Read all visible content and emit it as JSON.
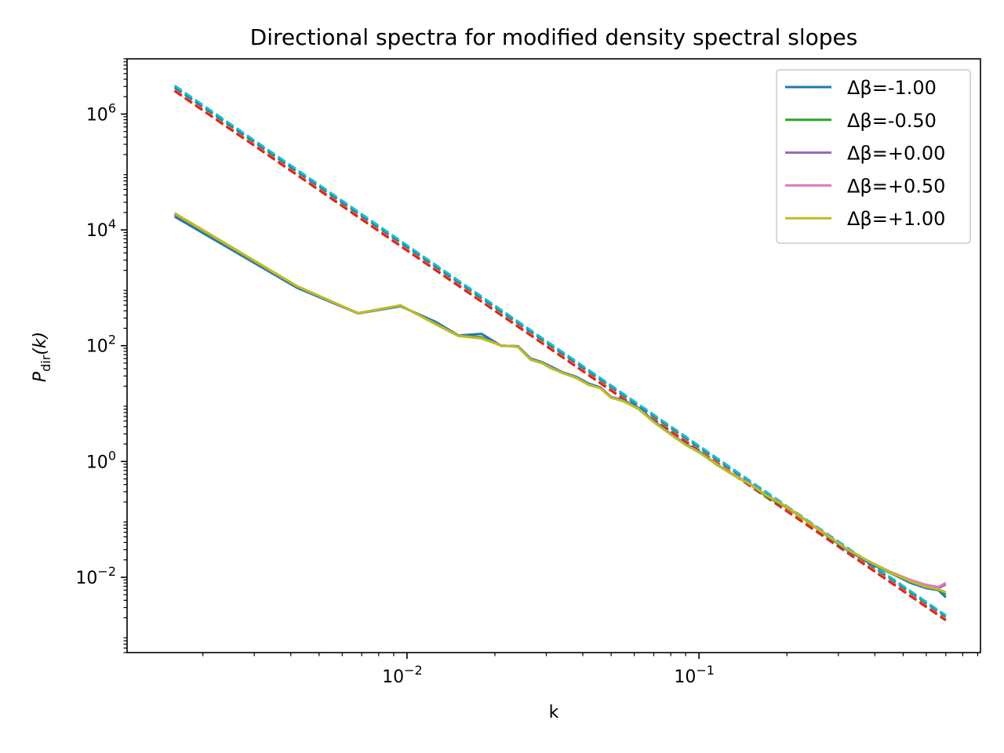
{
  "chart_data": {
    "type": "line",
    "title": "Directional spectra for modified density spectral slopes",
    "xlabel": "k",
    "ylabel": {
      "main": "P",
      "sub": "dir",
      "tail": "(k)"
    },
    "xscale": "log",
    "yscale": "log",
    "xlim": [
      0.0011,
      0.92
    ],
    "ylim": [
      0.0005,
      9000000
    ],
    "x_ticks": [
      {
        "value": 0.01,
        "base": "10",
        "exp": "−2"
      },
      {
        "value": 0.1,
        "base": "10",
        "exp": "−1"
      }
    ],
    "y_ticks": [
      {
        "value": 1000000,
        "base": "10",
        "exp": "6"
      },
      {
        "value": 10000,
        "base": "10",
        "exp": "4"
      },
      {
        "value": 100,
        "base": "10",
        "exp": "2"
      },
      {
        "value": 1,
        "base": "10",
        "exp": "0"
      },
      {
        "value": 0.01,
        "base": "10",
        "exp": "−2"
      }
    ],
    "grid": false,
    "legend_position": "top-right",
    "series": [
      {
        "name": "Δβ=-1.00",
        "color": "#1f77b4",
        "in_legend": true,
        "style": "solid",
        "x": [
          0.0016,
          0.0042,
          0.0068,
          0.0095,
          0.0125,
          0.015,
          0.018,
          0.021,
          0.024,
          0.0265,
          0.029,
          0.031,
          0.034,
          0.038,
          0.042,
          0.046,
          0.05,
          0.055,
          0.062,
          0.07,
          0.08,
          0.09,
          0.1,
          0.115,
          0.13,
          0.15,
          0.17,
          0.2,
          0.23,
          0.27,
          0.32,
          0.38,
          0.45,
          0.53,
          0.6,
          0.66,
          0.7
        ],
        "y": [
          17000,
          1000,
          360,
          480,
          260,
          150,
          160,
          100,
          98,
          60,
          52,
          44,
          35,
          29,
          22,
          19,
          13,
          11.5,
          8.5,
          5,
          3,
          2,
          1.5,
          0.9,
          0.6,
          0.4,
          0.25,
          0.16,
          0.1,
          0.055,
          0.03,
          0.018,
          0.012,
          0.008,
          0.0065,
          0.006,
          0.0045
        ]
      },
      {
        "name": "Δβ=-0.50",
        "color": "#2ca02c",
        "in_legend": true,
        "style": "solid",
        "x": [
          0.0016,
          0.0042,
          0.0068,
          0.0095,
          0.0125,
          0.015,
          0.018,
          0.021,
          0.024,
          0.0265,
          0.029,
          0.031,
          0.034,
          0.038,
          0.042,
          0.046,
          0.05,
          0.055,
          0.062,
          0.07,
          0.08,
          0.09,
          0.1,
          0.115,
          0.13,
          0.15,
          0.17,
          0.2,
          0.23,
          0.27,
          0.32,
          0.38,
          0.45,
          0.53,
          0.6,
          0.66,
          0.7
        ],
        "y": [
          18500,
          1050,
          365,
          490,
          245,
          150,
          140,
          100,
          97,
          58,
          51,
          42,
          34,
          28,
          21,
          18.5,
          12.8,
          11.2,
          8.2,
          4.8,
          2.95,
          1.95,
          1.45,
          0.88,
          0.6,
          0.4,
          0.25,
          0.16,
          0.1,
          0.056,
          0.031,
          0.019,
          0.012,
          0.0085,
          0.007,
          0.0062,
          0.005
        ]
      },
      {
        "name": "Δβ=+0.00",
        "color": "#9467bd",
        "in_legend": true,
        "style": "solid",
        "x": [
          0.0016,
          0.0042,
          0.0068,
          0.0095,
          0.0125,
          0.015,
          0.018,
          0.021,
          0.024,
          0.0265,
          0.029,
          0.031,
          0.034,
          0.038,
          0.042,
          0.046,
          0.05,
          0.055,
          0.062,
          0.07,
          0.08,
          0.09,
          0.1,
          0.115,
          0.13,
          0.15,
          0.17,
          0.2,
          0.23,
          0.27,
          0.32,
          0.38,
          0.45,
          0.53,
          0.6,
          0.66,
          0.7
        ],
        "y": [
          19000,
          1060,
          362,
          495,
          240,
          148,
          135,
          101,
          96,
          58,
          50,
          42,
          34,
          28,
          21,
          18.5,
          12.8,
          11.1,
          8.2,
          4.8,
          2.95,
          1.95,
          1.45,
          0.9,
          0.6,
          0.4,
          0.26,
          0.165,
          0.1,
          0.057,
          0.031,
          0.019,
          0.0125,
          0.0088,
          0.0072,
          0.0065,
          0.0075
        ]
      },
      {
        "name": "Δβ=+0.50",
        "color": "#e377c2",
        "in_legend": true,
        "style": "solid",
        "x": [
          0.0016,
          0.0042,
          0.0068,
          0.0095,
          0.0125,
          0.015,
          0.018,
          0.021,
          0.024,
          0.0265,
          0.029,
          0.031,
          0.034,
          0.038,
          0.042,
          0.046,
          0.05,
          0.055,
          0.062,
          0.07,
          0.08,
          0.09,
          0.1,
          0.115,
          0.13,
          0.15,
          0.17,
          0.2,
          0.23,
          0.27,
          0.32,
          0.38,
          0.45,
          0.53,
          0.6,
          0.66,
          0.7
        ],
        "y": [
          19200,
          1065,
          363,
          497,
          238,
          148,
          134,
          101,
          96,
          58,
          50,
          42,
          34,
          28,
          21,
          18.4,
          12.7,
          11.1,
          8.2,
          4.8,
          2.95,
          1.95,
          1.45,
          0.9,
          0.61,
          0.41,
          0.26,
          0.165,
          0.1,
          0.057,
          0.031,
          0.019,
          0.0125,
          0.009,
          0.0074,
          0.0068,
          0.008
        ]
      },
      {
        "name": "Δβ=+1.00",
        "color": "#bcbd22",
        "in_legend": true,
        "style": "solid",
        "x": [
          0.0016,
          0.0042,
          0.0068,
          0.0095,
          0.0125,
          0.015,
          0.018,
          0.021,
          0.024,
          0.0265,
          0.029,
          0.031,
          0.034,
          0.038,
          0.042,
          0.046,
          0.05,
          0.055,
          0.062,
          0.07,
          0.08,
          0.09,
          0.1,
          0.115,
          0.13,
          0.15,
          0.17,
          0.2,
          0.23,
          0.27,
          0.32,
          0.38,
          0.45,
          0.53,
          0.6,
          0.66,
          0.7
        ],
        "y": [
          19500,
          1070,
          364,
          498,
          236,
          147,
          133,
          101,
          95,
          57,
          50,
          41,
          34,
          27.5,
          21,
          18.3,
          12.6,
          11,
          8.1,
          4.8,
          2.92,
          1.93,
          1.44,
          0.89,
          0.6,
          0.4,
          0.26,
          0.163,
          0.1,
          0.056,
          0.031,
          0.019,
          0.0122,
          0.0085,
          0.0068,
          0.0062,
          0.0055
        ]
      },
      {
        "color": "#ff7f0e",
        "in_legend": false,
        "style": "dashed",
        "x": [
          0.0016,
          0.7
        ],
        "y": [
          2600000,
          0.0019
        ]
      },
      {
        "color": "#d62728",
        "in_legend": false,
        "style": "dashed",
        "x": [
          0.0016,
          0.7
        ],
        "y": [
          2500000,
          0.0018
        ]
      },
      {
        "color": "#1f77b4",
        "in_legend": false,
        "style": "dashed",
        "x": [
          0.0016,
          0.7
        ],
        "y": [
          2900000,
          0.0021
        ]
      },
      {
        "color": "#17becf",
        "in_legend": false,
        "style": "dashed",
        "x": [
          0.0016,
          0.7
        ],
        "y": [
          3100000,
          0.0022
        ]
      }
    ]
  }
}
